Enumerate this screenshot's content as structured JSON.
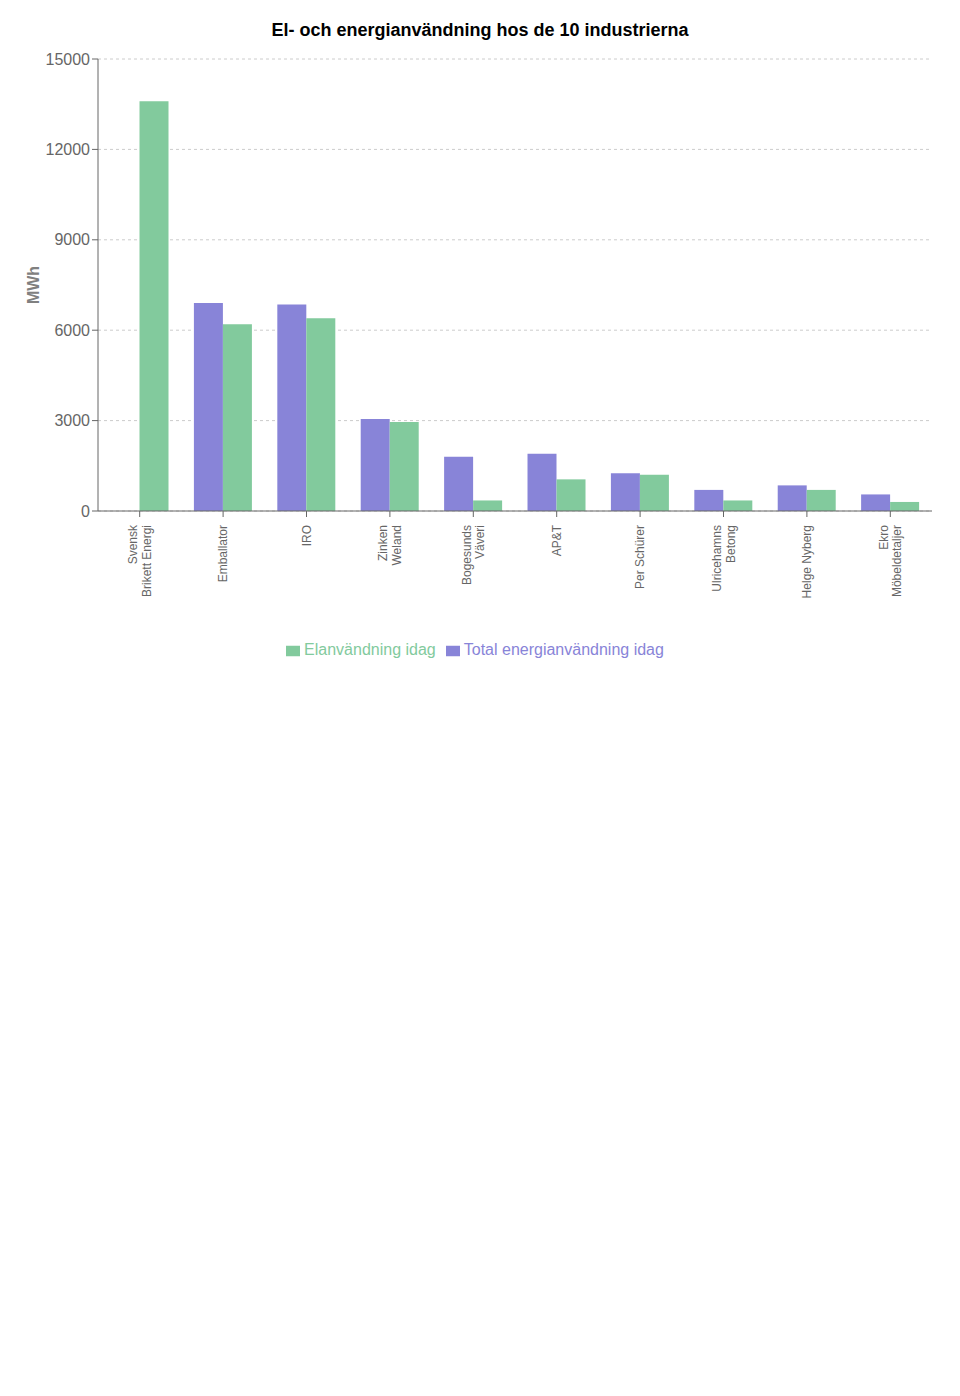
{
  "chart_data": {
    "type": "bar",
    "title": "El- och energianvändning hos de 10 industrierna",
    "ylabel": "MWh",
    "categories": [
      "Svensk\nBrikett Energi",
      "Emballator",
      "IRO",
      "Zinken\nWeland",
      "Bogesunds\nVäveri",
      "AP&T",
      "Per Schürer",
      "Ulricehamns\nBetong",
      "Helge Nyberg",
      "Ekro\nMöbeldetaljer"
    ],
    "series": [
      {
        "name": "Total energianvändning idag",
        "color": "#8884d8",
        "values": [
          0,
          6900,
          6850,
          3050,
          1800,
          1900,
          1250,
          700,
          850,
          550
        ]
      },
      {
        "name": "Elanvändning idag",
        "color": "#82ca9d",
        "values": [
          13600,
          6200,
          6400,
          2950,
          350,
          1050,
          1200,
          350,
          700,
          300
        ]
      }
    ],
    "ylim": [
      0,
      15000
    ],
    "yticks": [
      0,
      3000,
      6000,
      9000,
      12000,
      15000
    ],
    "grid": true,
    "legend": "bottom"
  }
}
